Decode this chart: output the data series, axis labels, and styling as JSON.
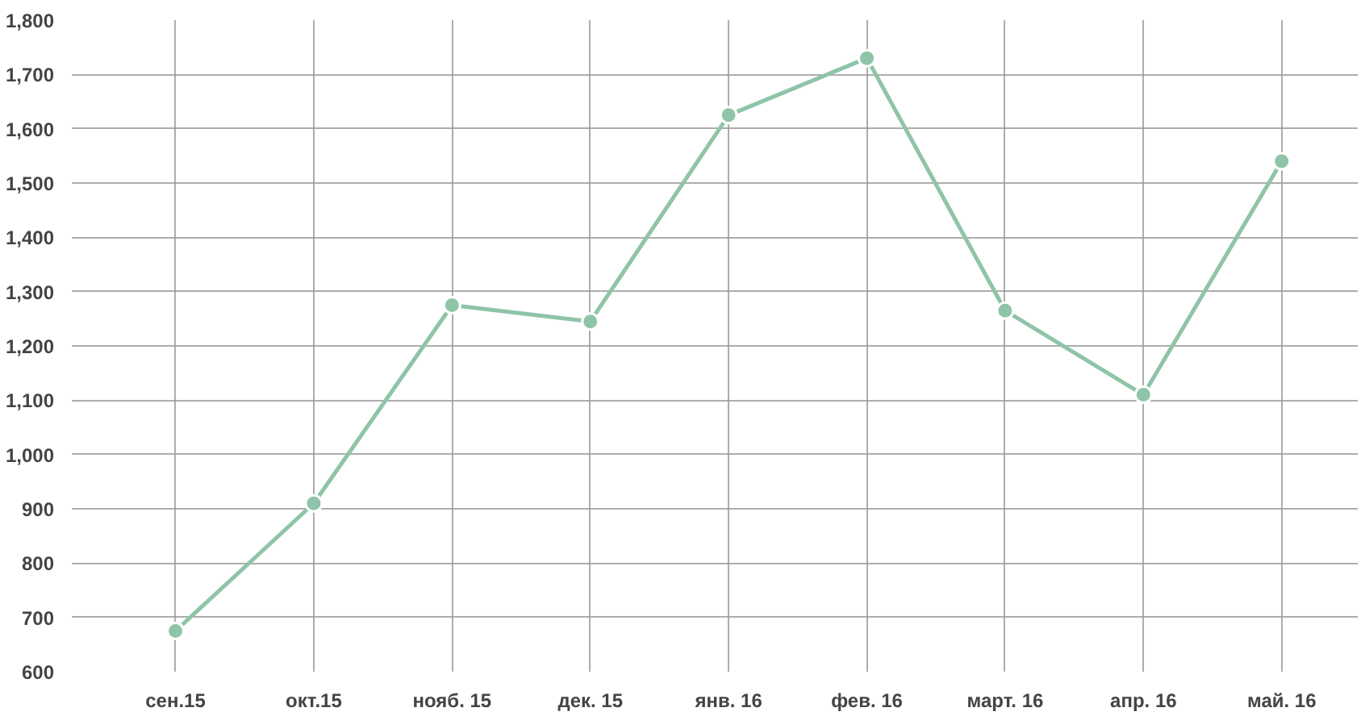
{
  "chart_data": {
    "type": "line",
    "categories": [
      "сен.15",
      "окт.15",
      "нояб. 15",
      "дек. 15",
      "янв. 16",
      "фев. 16",
      "март. 16",
      "апр. 16",
      "май. 16"
    ],
    "series": [
      {
        "color": "#8fc4a8",
        "values": [
          675,
          910,
          1275,
          1245,
          1625,
          1730,
          1265,
          1110,
          1540
        ]
      }
    ],
    "ylim": [
      600,
      1800
    ],
    "yticks": [
      600,
      700,
      800,
      900,
      {
        "value": 1000,
        "label": "1,000"
      },
      {
        "value": 1100,
        "label": "1,100"
      },
      {
        "value": 1200,
        "label": "1,200"
      },
      {
        "value": 1300,
        "label": "1,300"
      },
      {
        "value": 1400,
        "label": "1,400"
      },
      {
        "value": 1500,
        "label": "1,500"
      },
      {
        "value": 1600,
        "label": "1,600"
      },
      {
        "value": 1700,
        "label": "1,700"
      },
      {
        "value": 1800,
        "label": "1,800"
      }
    ],
    "grid": true,
    "marker": "circle",
    "line_style": "solid"
  }
}
